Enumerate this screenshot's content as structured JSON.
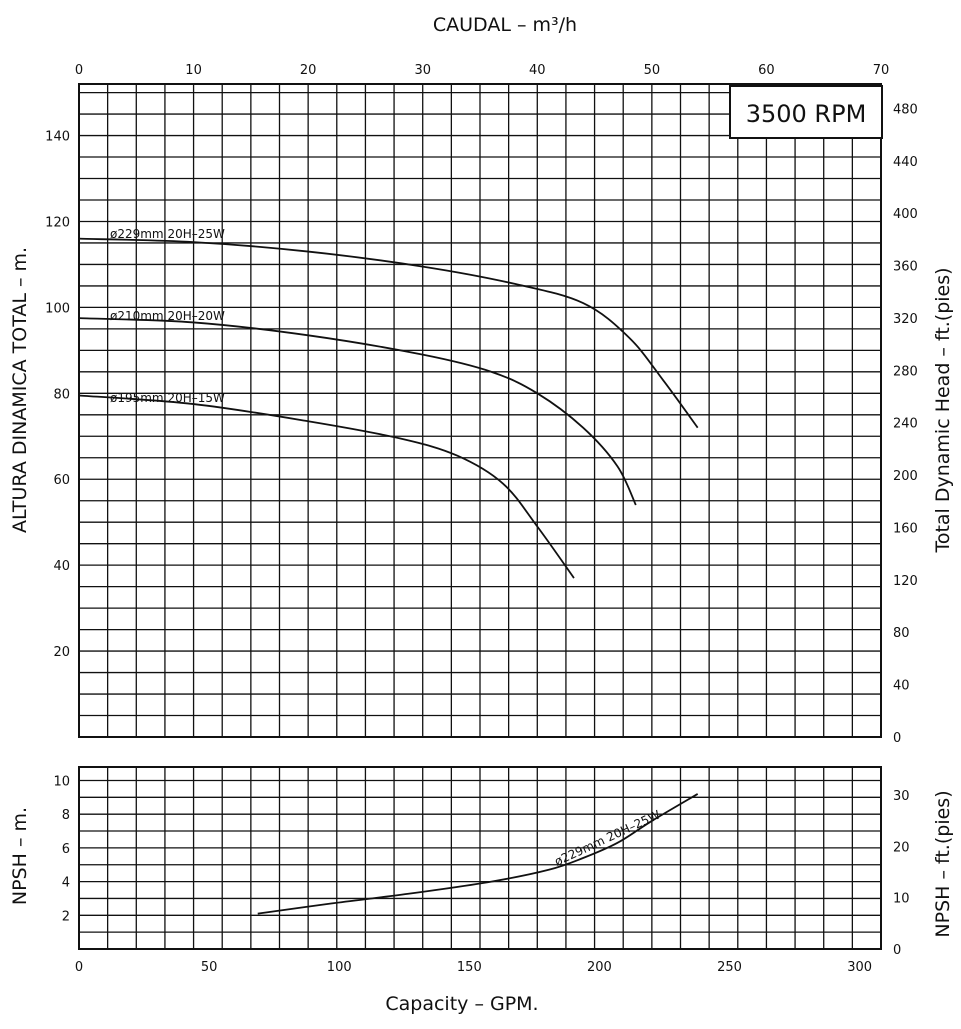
{
  "chart_data": [
    {
      "type": "line",
      "panel": "head",
      "title": "3500 RPM",
      "top_axis": {
        "label": "CAUDAL  – m³/h",
        "range": [
          0,
          70
        ],
        "ticks": [
          "0",
          "10",
          "20",
          "30",
          "40",
          "50",
          "60",
          "70"
        ]
      },
      "bottom_axis": {
        "label": "Capacity – GPM.",
        "range": [
          0,
          308.2
        ],
        "ticks": [
          "0",
          "50",
          "100",
          "150",
          "200",
          "250",
          "300"
        ]
      },
      "left_axis": {
        "label": "ALTURA DINAMICA TOTAL – m.",
        "range": [
          0,
          152
        ],
        "ticks": [
          "20",
          "40",
          "60",
          "80",
          "100",
          "120",
          "140"
        ]
      },
      "right_axis": {
        "label": "Total Dynamic Head – ft.(pies)",
        "ticks": [
          "0",
          "40",
          "80",
          "120",
          "160",
          "200",
          "240",
          "280",
          "320",
          "360",
          "400",
          "440",
          "480"
        ]
      },
      "grid": true,
      "series": [
        {
          "name": "ø229mm  20H–25W",
          "points": [
            [
              0,
              116
            ],
            [
              10,
              115.2
            ],
            [
              20,
              113
            ],
            [
              30,
              109.5
            ],
            [
              38,
              105.5
            ],
            [
              44,
              101
            ],
            [
              48,
              93
            ],
            [
              51,
              83
            ],
            [
              54,
              72
            ]
          ]
        },
        {
          "name": "ø210mm  20H–20W",
          "points": [
            [
              0,
              97.5
            ],
            [
              10,
              96.5
            ],
            [
              20,
              93.5
            ],
            [
              30,
              89
            ],
            [
              36,
              85
            ],
            [
              40,
              80
            ],
            [
              44,
              72
            ],
            [
              47,
              63
            ],
            [
              48.6,
              54
            ]
          ]
        },
        {
          "name": "ø195mm  20H–15W",
          "points": [
            [
              0,
              79.5
            ],
            [
              10,
              77.5
            ],
            [
              20,
              73.5
            ],
            [
              28,
              69.5
            ],
            [
              33,
              65.5
            ],
            [
              37,
              59
            ],
            [
              40,
              49
            ],
            [
              43.2,
              37
            ]
          ]
        }
      ]
    },
    {
      "type": "line",
      "panel": "npsh",
      "bottom_axis": {
        "label": "Capacity – GPM.",
        "range": [
          0,
          308.2
        ],
        "ticks": [
          "0",
          "50",
          "100",
          "150",
          "200",
          "250",
          "300"
        ]
      },
      "left_axis": {
        "label": "NPSH  –  m.",
        "range": [
          0,
          10.8
        ],
        "ticks": [
          "2",
          "4",
          "6",
          "8",
          "10"
        ]
      },
      "right_axis": {
        "label": "NPSH  –  ft.(pies)",
        "ticks": [
          "0",
          "10",
          "20",
          "30"
        ]
      },
      "grid": true,
      "series": [
        {
          "name": "ø229mm  20H–25W",
          "points": [
            [
              15.6,
              2.1
            ],
            [
              22,
              2.7
            ],
            [
              29,
              3.3
            ],
            [
              36,
              4
            ],
            [
              41,
              4.7
            ],
            [
              44,
              5.4
            ],
            [
              47,
              6.3
            ],
            [
              50,
              7.6
            ],
            [
              54,
              9.2
            ]
          ]
        }
      ]
    }
  ]
}
